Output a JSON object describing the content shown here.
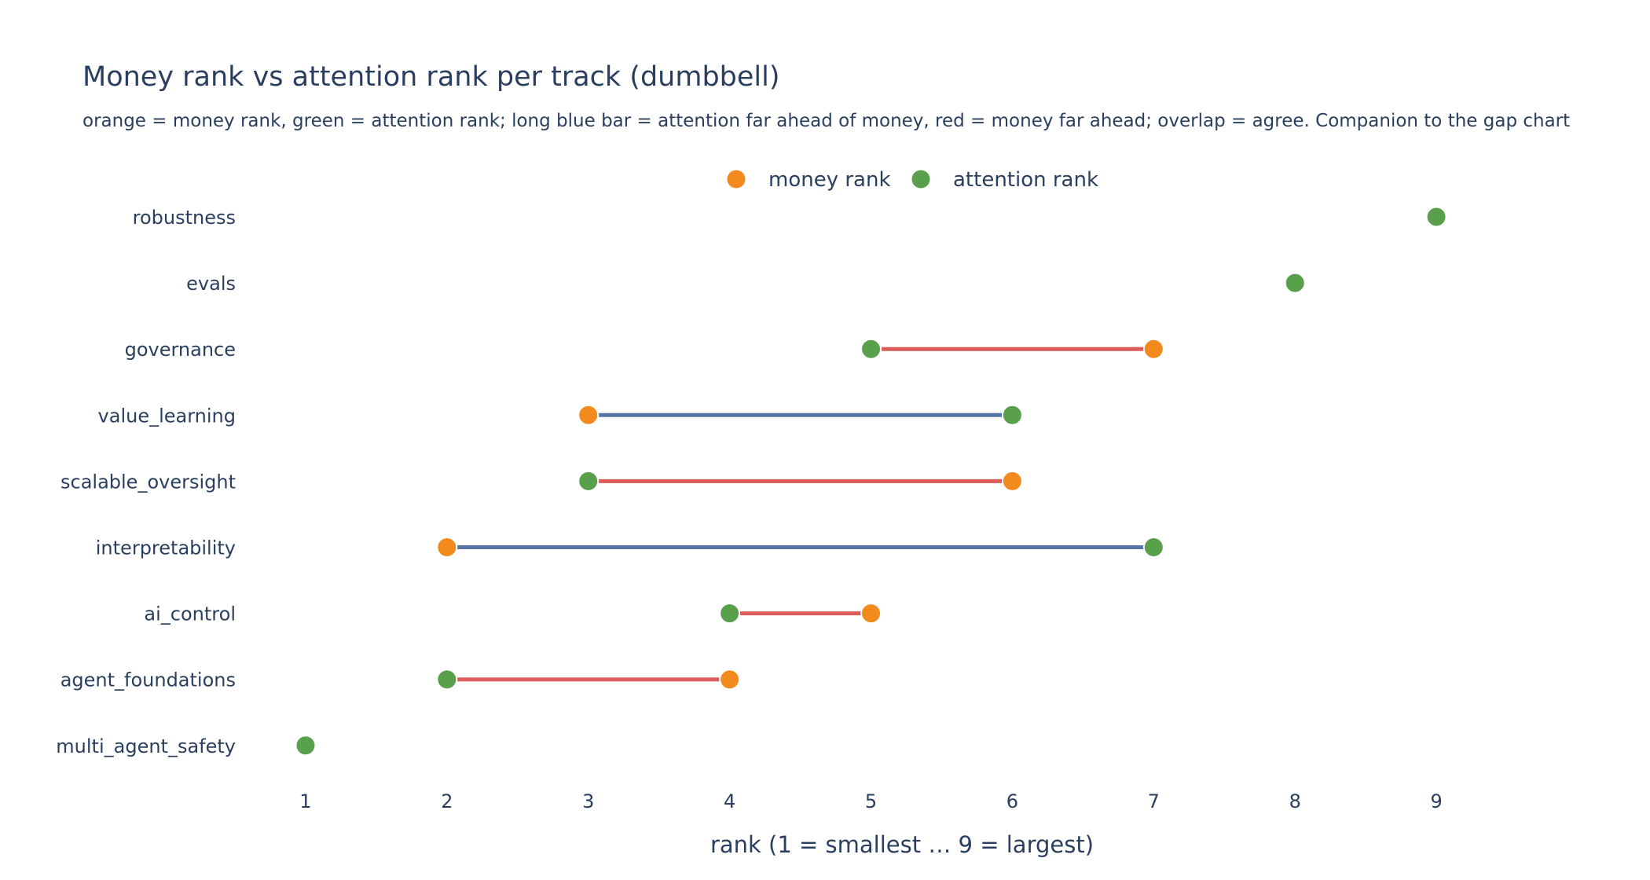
{
  "chart_data": {
    "type": "scatter",
    "variant": "dumbbell",
    "title": "Money rank vs attention rank per track (dumbbell)",
    "subtitle": "orange = money rank, green = attention rank; long blue bar = attention far ahead of money, red = money far ahead; overlap = agree. Companion to the gap chart",
    "xlabel": "rank (1 = smallest … 9 = largest)",
    "ylabel": "",
    "xlim": [
      0.55,
      9.9
    ],
    "xticks": [
      1,
      2,
      3,
      4,
      5,
      6,
      7,
      8,
      9
    ],
    "grid": false,
    "legend_position": "top-center",
    "categories": [
      "robustness",
      "evals",
      "governance",
      "value_learning",
      "scalable_oversight",
      "interpretability",
      "ai_control",
      "agent_foundations",
      "multi_agent_safety"
    ],
    "series": [
      {
        "name": "money rank",
        "color": "#f28a1e",
        "values": [
          9,
          8,
          7,
          3,
          6,
          2,
          5,
          4,
          1
        ]
      },
      {
        "name": "attention rank",
        "color": "#59a04d",
        "values": [
          9,
          8,
          5,
          6,
          3,
          7,
          4,
          2,
          1
        ]
      }
    ],
    "connector_colors": {
      "attention_ahead": "#5575a4",
      "money_ahead": "#dd5c5c"
    }
  }
}
